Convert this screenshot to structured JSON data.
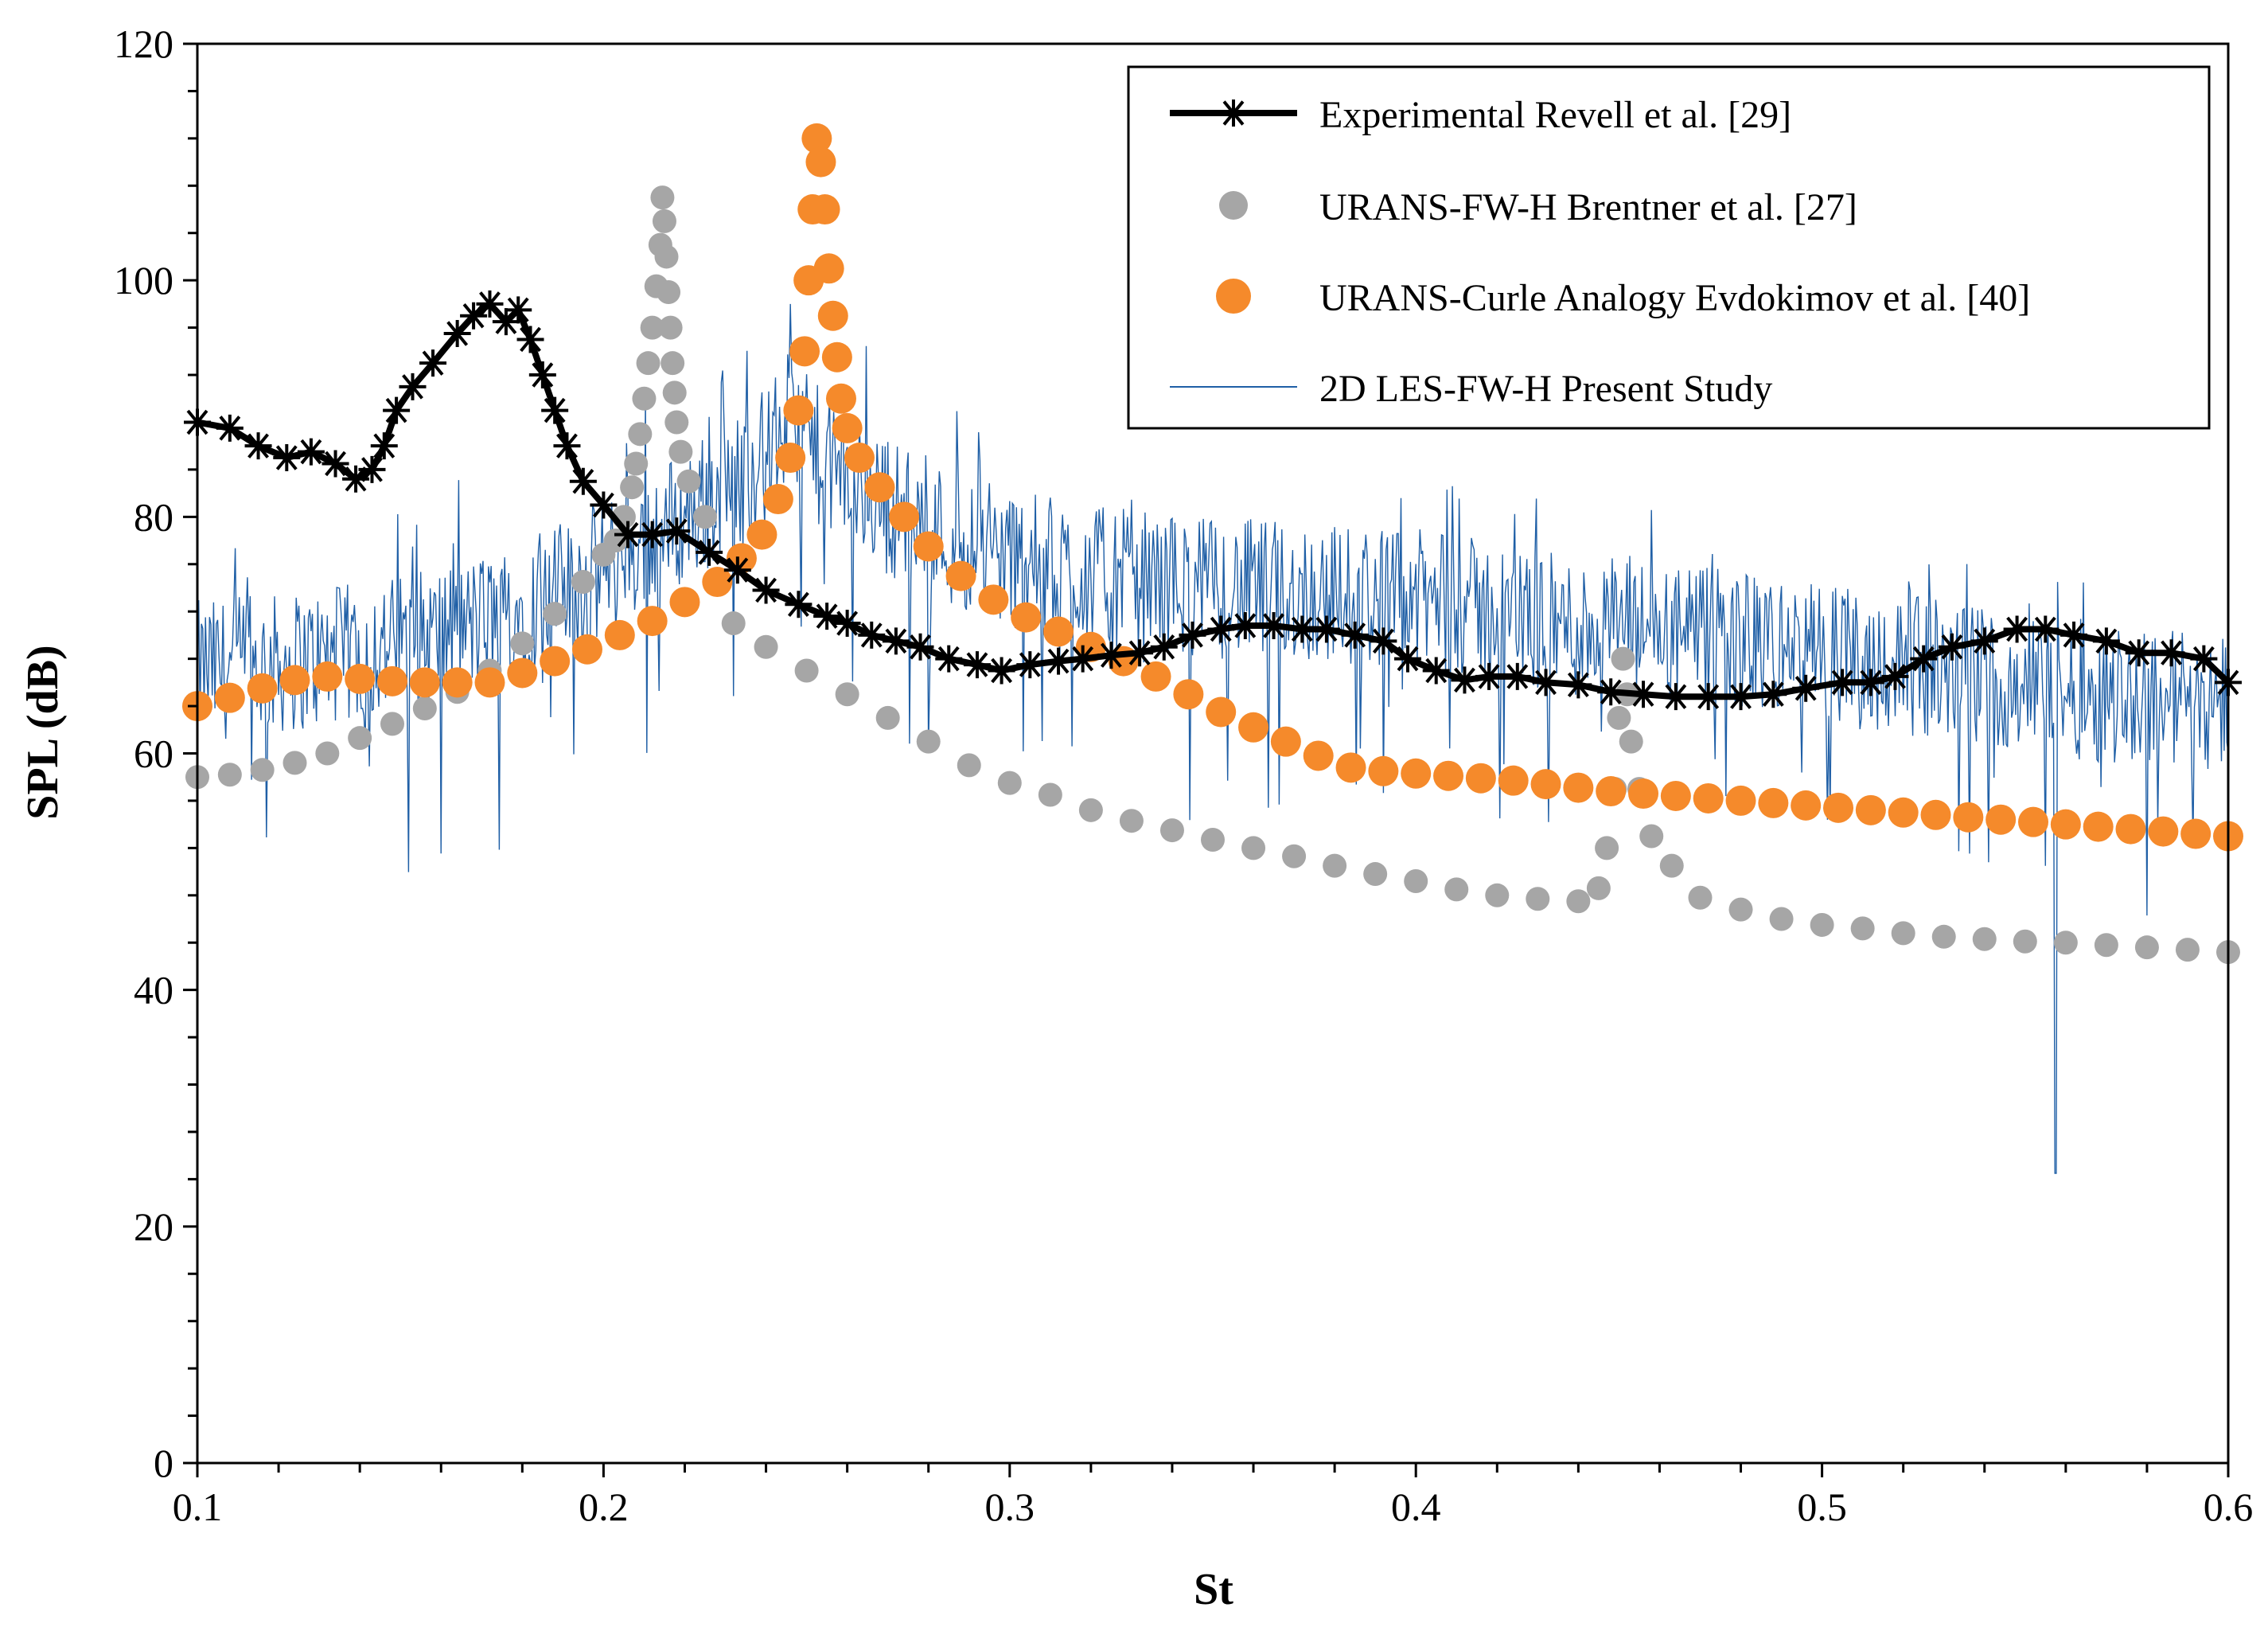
{
  "chart_data": {
    "type": "line",
    "title": "",
    "xlabel": "St",
    "ylabel": "SPL (dB)",
    "xlim": [
      0.1,
      0.6
    ],
    "ylim": [
      0,
      120
    ],
    "x_ticks": [
      "0.1",
      "0.2",
      "0.3",
      "0.4",
      "0.5",
      "0.6"
    ],
    "y_ticks": [
      "0",
      "20",
      "40",
      "60",
      "80",
      "100",
      "120"
    ],
    "grid": false,
    "legend_position": "top-right",
    "series": [
      {
        "name": "Experimental Revell et al. [29]",
        "style": "black line with asterisk markers",
        "color": "#000000",
        "x": [
          0.1,
          0.108,
          0.115,
          0.122,
          0.128,
          0.134,
          0.139,
          0.143,
          0.146,
          0.149,
          0.153,
          0.158,
          0.164,
          0.168,
          0.172,
          0.176,
          0.179,
          0.182,
          0.185,
          0.188,
          0.191,
          0.195,
          0.2,
          0.206,
          0.212,
          0.218,
          0.226,
          0.233,
          0.24,
          0.248,
          0.255,
          0.26,
          0.266,
          0.272,
          0.278,
          0.285,
          0.292,
          0.298,
          0.305,
          0.312,
          0.318,
          0.325,
          0.332,
          0.338,
          0.345,
          0.352,
          0.358,
          0.365,
          0.372,
          0.378,
          0.385,
          0.392,
          0.398,
          0.405,
          0.412,
          0.418,
          0.425,
          0.432,
          0.44,
          0.448,
          0.456,
          0.464,
          0.472,
          0.48,
          0.488,
          0.496,
          0.505,
          0.512,
          0.518,
          0.525,
          0.532,
          0.54,
          0.548,
          0.555,
          0.562,
          0.57,
          0.578,
          0.586,
          0.594,
          0.6
        ],
        "values": [
          88.0,
          87.5,
          86.0,
          85.0,
          85.5,
          84.5,
          83.2,
          84.0,
          86.0,
          89.0,
          91.0,
          93.0,
          95.5,
          97.0,
          98.0,
          96.5,
          97.5,
          95.0,
          92.0,
          89.0,
          86.0,
          83.0,
          81.0,
          78.5,
          78.5,
          78.8,
          77.0,
          75.5,
          73.8,
          72.6,
          71.6,
          71.0,
          70.0,
          69.5,
          69.0,
          68.0,
          67.5,
          67.0,
          67.5,
          67.8,
          68.0,
          68.3,
          68.5,
          69.0,
          70.0,
          70.5,
          70.8,
          70.8,
          70.5,
          70.5,
          70.0,
          69.5,
          68.0,
          67.0,
          66.2,
          66.5,
          66.5,
          66.0,
          65.8,
          65.2,
          65.0,
          64.8,
          64.8,
          64.8,
          65.0,
          65.5,
          66.0,
          66.0,
          66.5,
          68.0,
          69.0,
          69.5,
          70.5,
          70.5,
          70.0,
          69.5,
          68.5,
          68.5,
          68.0,
          66.0
        ]
      },
      {
        "name": "URANS-FW-H Brentner et al. [27]",
        "style": "grey circle markers",
        "color": "#a6a6a6",
        "x": [
          0.1,
          0.108,
          0.116,
          0.124,
          0.132,
          0.14,
          0.148,
          0.156,
          0.164,
          0.172,
          0.18,
          0.188,
          0.195,
          0.2,
          0.203,
          0.205,
          0.207,
          0.208,
          0.209,
          0.21,
          0.211,
          0.212,
          0.213,
          0.214,
          0.2145,
          0.215,
          0.2155,
          0.216,
          0.2165,
          0.217,
          0.2175,
          0.218,
          0.219,
          0.221,
          0.225,
          0.232,
          0.24,
          0.25,
          0.26,
          0.27,
          0.28,
          0.29,
          0.3,
          0.31,
          0.32,
          0.33,
          0.34,
          0.35,
          0.36,
          0.37,
          0.38,
          0.39,
          0.4,
          0.41,
          0.42,
          0.43,
          0.44,
          0.445,
          0.447,
          0.449,
          0.45,
          0.451,
          0.452,
          0.453,
          0.455,
          0.458,
          0.463,
          0.47,
          0.48,
          0.49,
          0.5,
          0.51,
          0.52,
          0.53,
          0.54,
          0.55,
          0.56,
          0.57,
          0.58,
          0.59,
          0.6
        ],
        "values": [
          58.0,
          58.2,
          58.6,
          59.2,
          60.0,
          61.3,
          62.5,
          63.8,
          65.2,
          67.0,
          69.3,
          71.8,
          74.5,
          76.8,
          78.0,
          80.0,
          82.5,
          84.5,
          87.0,
          90.0,
          93.0,
          96.0,
          99.5,
          103.0,
          107.0,
          105.0,
          102.0,
          99.0,
          96.0,
          93.0,
          90.5,
          88.0,
          85.5,
          83.0,
          80.0,
          71.0,
          69.0,
          67.0,
          65.0,
          63.0,
          61.0,
          59.0,
          57.5,
          56.5,
          55.2,
          54.3,
          53.5,
          52.7,
          52.0,
          51.3,
          50.5,
          49.8,
          49.2,
          48.5,
          48.0,
          47.7,
          47.5,
          48.6,
          52.0,
          57.0,
          63.0,
          68.0,
          65.0,
          61.0,
          57.0,
          53.0,
          50.5,
          47.8,
          46.8,
          46.0,
          45.5,
          45.2,
          44.8,
          44.5,
          44.3,
          44.1,
          44.0,
          43.8,
          43.6,
          43.4,
          43.2
        ]
      },
      {
        "name": "URANS-Curle Analogy Evdokimov et al. [40]",
        "style": "orange circle markers",
        "color": "#f58a2b",
        "x": [
          0.1,
          0.108,
          0.116,
          0.124,
          0.132,
          0.14,
          0.148,
          0.156,
          0.164,
          0.172,
          0.18,
          0.188,
          0.196,
          0.204,
          0.212,
          0.22,
          0.228,
          0.234,
          0.239,
          0.243,
          0.246,
          0.248,
          0.2495,
          0.2505,
          0.2515,
          0.2525,
          0.2535,
          0.2545,
          0.2555,
          0.2565,
          0.2575,
          0.2585,
          0.26,
          0.263,
          0.268,
          0.274,
          0.28,
          0.288,
          0.296,
          0.304,
          0.312,
          0.32,
          0.328,
          0.336,
          0.344,
          0.352,
          0.36,
          0.368,
          0.376,
          0.384,
          0.392,
          0.4,
          0.408,
          0.416,
          0.424,
          0.432,
          0.44,
          0.448,
          0.456,
          0.464,
          0.472,
          0.48,
          0.488,
          0.496,
          0.504,
          0.512,
          0.52,
          0.528,
          0.536,
          0.544,
          0.552,
          0.56,
          0.568,
          0.576,
          0.584,
          0.592,
          0.6
        ],
        "values": [
          64.0,
          64.7,
          65.5,
          66.2,
          66.5,
          66.3,
          66.1,
          66.0,
          66.0,
          66.0,
          66.8,
          67.8,
          68.8,
          70.0,
          71.2,
          72.8,
          74.5,
          76.5,
          78.5,
          81.5,
          85.0,
          89.0,
          94.0,
          100.0,
          106.0,
          112.0,
          110.0,
          106.0,
          101.0,
          97.0,
          93.5,
          90.0,
          87.5,
          85.0,
          82.5,
          80.0,
          77.5,
          75.0,
          73.0,
          71.5,
          70.3,
          69.0,
          67.8,
          66.5,
          65.0,
          63.5,
          62.2,
          61.0,
          59.8,
          58.8,
          58.5,
          58.3,
          58.1,
          57.9,
          57.7,
          57.4,
          57.1,
          56.8,
          56.6,
          56.4,
          56.2,
          56.0,
          55.8,
          55.6,
          55.4,
          55.2,
          55.0,
          54.8,
          54.6,
          54.4,
          54.2,
          54.0,
          53.8,
          53.6,
          53.4,
          53.2,
          53.0
        ]
      },
      {
        "name": "2D LES-FW-H Present Study",
        "style": "thin blue noisy line",
        "color": "#1f5fa6",
        "envelope_x": [
          0.1,
          0.12,
          0.14,
          0.16,
          0.18,
          0.2,
          0.22,
          0.24,
          0.245,
          0.25,
          0.26,
          0.28,
          0.3,
          0.32,
          0.35,
          0.38,
          0.4,
          0.42,
          0.44,
          0.45,
          0.46,
          0.48,
          0.5,
          0.52,
          0.54,
          0.56,
          0.58,
          0.6
        ],
        "envelope_mean": [
          67.0,
          67.5,
          68.5,
          70.0,
          72.0,
          75.5,
          80.0,
          85.0,
          88.0,
          86.0,
          83.0,
          79.0,
          76.5,
          75.0,
          74.0,
          73.5,
          73.0,
          72.0,
          70.5,
          71.0,
          70.0,
          69.5,
          68.5,
          67.5,
          66.5,
          65.5,
          65.0,
          64.5
        ],
        "min_dip": {
          "x": 0.5575,
          "value": 24.5
        },
        "max_peak": {
          "x": 0.246,
          "value": 98.0
        }
      }
    ]
  }
}
